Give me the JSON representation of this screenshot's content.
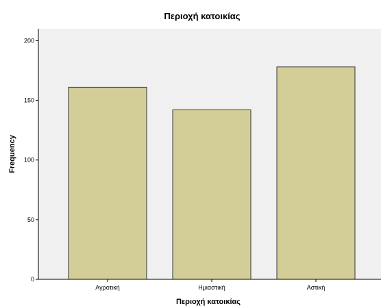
{
  "chart_data": {
    "type": "bar",
    "title": "Περιοχή κατοικίας",
    "xlabel": "Περιοχή κατοικίας",
    "ylabel": "Frequency",
    "categories": [
      "Αγροτική",
      "Ημιαστική",
      "Αστική"
    ],
    "values": [
      161,
      142,
      178
    ],
    "ylim": [
      0,
      210
    ],
    "yticks": [
      0,
      50,
      100,
      150,
      200
    ],
    "grid": false,
    "legend": "none",
    "colors": {
      "bar_fill": "#d3ce98",
      "bar_stroke": "#333333",
      "plot_background": "#f0f0f0",
      "axis": "#000000"
    }
  }
}
